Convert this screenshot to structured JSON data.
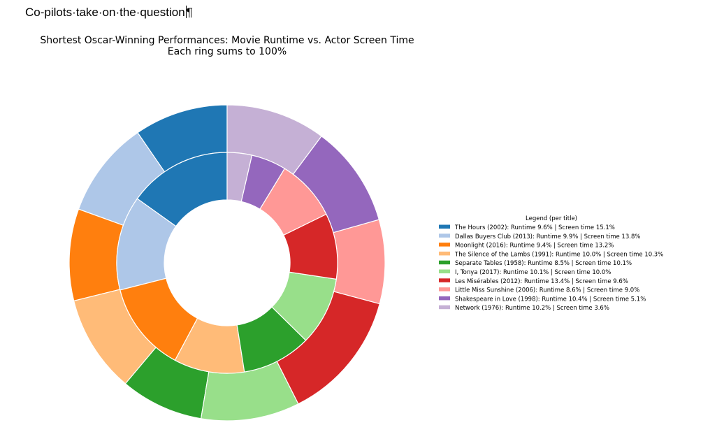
{
  "document": {
    "heading_text": "Co-pilots·take·on·the·question",
    "pilcrow": "¶"
  },
  "chart_data": {
    "type": "pie",
    "subtype": "nested-donut",
    "title": "Shortest Oscar-Winning Performances: Movie Runtime vs. Actor Screen Time",
    "subtitle": "Each ring sums to 100%",
    "legend_title": "Legend (per title)",
    "legend_placement": "right",
    "rings": [
      {
        "ring": "outer",
        "metric": "Runtime"
      },
      {
        "ring": "inner",
        "metric": "Screen time"
      }
    ],
    "series": [
      {
        "label": "The Hours (2002): Runtime 9.6% | Screen time 15.1%",
        "runtime": 9.6,
        "screen_time": 15.1,
        "color": "#1f77b4"
      },
      {
        "label": "Dallas Buyers Club (2013): Runtime 9.9% | Screen time 13.8%",
        "runtime": 9.9,
        "screen_time": 13.8,
        "color": "#aec7e8"
      },
      {
        "label": "Moonlight (2016): Runtime 9.4% | Screen time 13.2%",
        "runtime": 9.4,
        "screen_time": 13.2,
        "color": "#ff7f0e"
      },
      {
        "label": "The Silence of the Lambs (1991): Runtime 10.0% | Screen time 10.3%",
        "runtime": 10.0,
        "screen_time": 10.3,
        "color": "#ffbb78"
      },
      {
        "label": "Separate Tables (1958): Runtime 8.5% | Screen time 10.1%",
        "runtime": 8.5,
        "screen_time": 10.1,
        "color": "#2ca02c"
      },
      {
        "label": "I, Tonya (2017): Runtime 10.1% | Screen time 10.0%",
        "runtime": 10.1,
        "screen_time": 10.0,
        "color": "#98df8a"
      },
      {
        "label": "Les Misérables (2012): Runtime 13.4% | Screen time 9.6%",
        "runtime": 13.4,
        "screen_time": 9.6,
        "color": "#d62728"
      },
      {
        "label": "Little Miss Sunshine (2006): Runtime 8.6% | Screen time 9.0%",
        "runtime": 8.6,
        "screen_time": 9.0,
        "color": "#ff9896"
      },
      {
        "label": "Shakespeare in Love (1998): Runtime 10.4% | Screen time 5.1%",
        "runtime": 10.4,
        "screen_time": 5.1,
        "color": "#9467bd"
      },
      {
        "label": "Network (1976): Runtime 10.2% | Screen time 3.6%",
        "runtime": 10.2,
        "screen_time": 3.6,
        "color": "#c5b0d5"
      }
    ]
  }
}
